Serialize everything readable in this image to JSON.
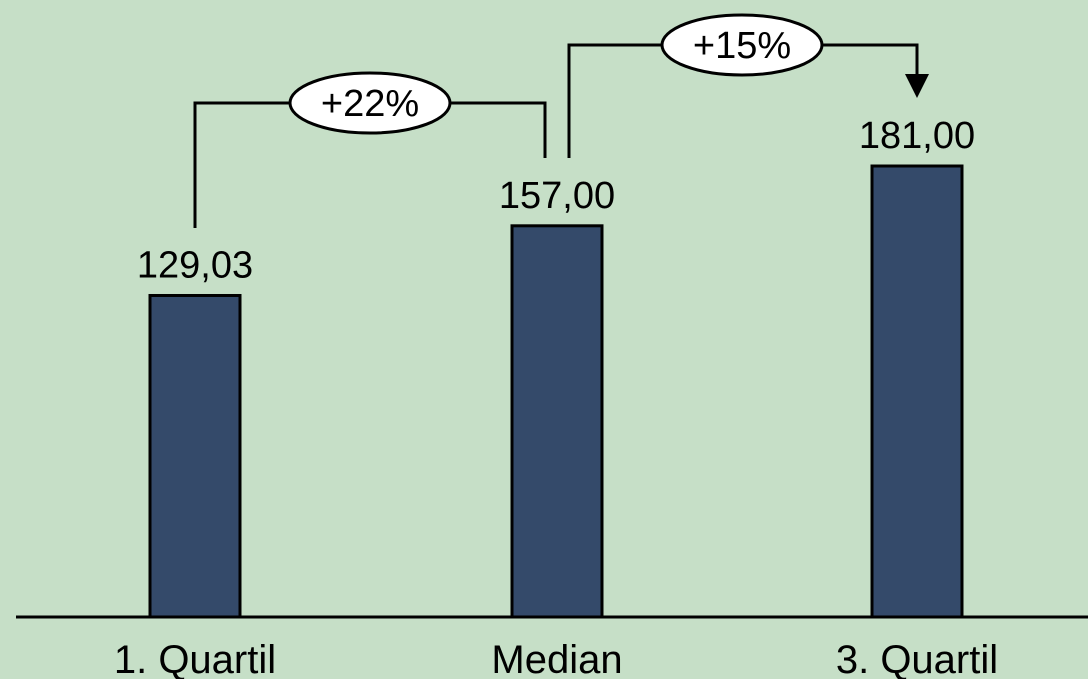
{
  "chart_data": {
    "type": "bar",
    "categories": [
      "1. Quartil",
      "Median",
      "3. Quartil"
    ],
    "values": [
      129.03,
      157.0,
      181.0
    ],
    "value_labels": [
      "129,03",
      "157,00",
      "181,00"
    ],
    "ylim": [
      0,
      181
    ],
    "grid": false,
    "legend": "none",
    "annotations": [
      {
        "from": "1. Quartil",
        "to": "Median",
        "text": "+22%",
        "arrow": false
      },
      {
        "from": "Median",
        "to": "3. Quartil",
        "text": "+15%",
        "arrow": true
      }
    ]
  },
  "colors": {
    "background": "#c6dfc7",
    "bar_fill": "#344a6a",
    "outline": "#000000",
    "bubble_fill": "#ffffff"
  }
}
